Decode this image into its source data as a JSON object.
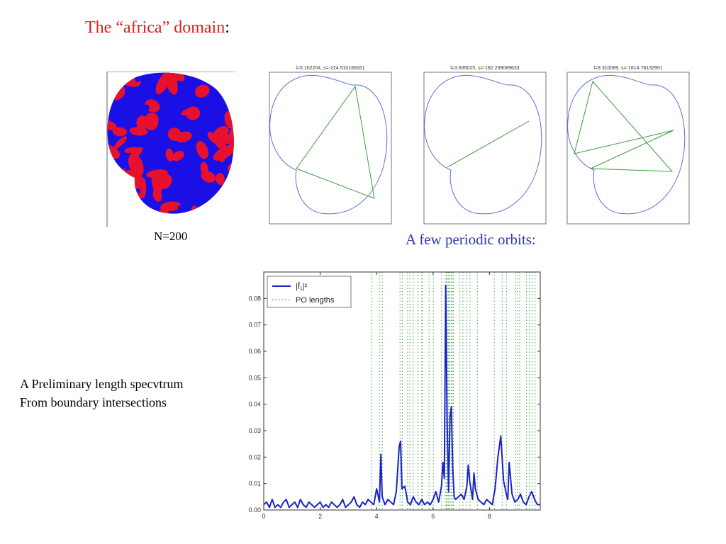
{
  "slide": {
    "title_main": "The “africa” domain",
    "title_colon": ":",
    "n_label": "N=200",
    "orbits_caption": "A few periodic orbits:",
    "spectrum_caption_line1": "A Preliminary length specvtrum",
    "spectrum_caption_line2": "From boundary intersections"
  },
  "colors": {
    "title": "#e31b1b",
    "orbits_caption": "#2e3aa8",
    "domain_red": "#e8112d",
    "domain_blue": "#1a10e6",
    "boundary": "#5e6ed6",
    "orbit_line": "#3f9a3f",
    "spectrum_line": "#1a22c8",
    "po_lines": "#3aa03a"
  },
  "orbit_panels": [
    {
      "title": "l=5.102204, s=-224.510169161"
    },
    {
      "title": "l=3.835025, s=-182.239089633"
    },
    {
      "title": "l=9.310089, s=-1614.78132951"
    }
  ],
  "chart_data": {
    "type": "line",
    "title": "",
    "xlabel": "",
    "ylabel": "",
    "xlim": [
      0,
      9.8
    ],
    "ylim": [
      0,
      0.09
    ],
    "x_ticks": [
      0,
      2,
      4,
      6,
      8
    ],
    "y_ticks": [
      0.0,
      0.01,
      0.02,
      0.03,
      0.04,
      0.05,
      0.06,
      0.07,
      0.08
    ],
    "x_tick_labels": [
      "0",
      "2",
      "4",
      "6",
      "8"
    ],
    "y_tick_labels": [
      "0.00",
      "0.01",
      "0.02",
      "0.03",
      "0.04",
      "0.05",
      "0.06",
      "0.07",
      "0.08"
    ],
    "legend_position": "top-left",
    "legend": [
      {
        "label": "|f̂₁|²",
        "style": "solid"
      },
      {
        "label": "PO lengths",
        "style": "dotted"
      }
    ],
    "series": [
      {
        "name": "|f̂₁|²",
        "x": [
          0.0,
          0.1,
          0.2,
          0.3,
          0.4,
          0.5,
          0.6,
          0.7,
          0.8,
          0.9,
          1.0,
          1.1,
          1.2,
          1.3,
          1.4,
          1.5,
          1.6,
          1.7,
          1.8,
          1.9,
          2.0,
          2.1,
          2.2,
          2.3,
          2.4,
          2.5,
          2.6,
          2.7,
          2.8,
          2.9,
          3.0,
          3.1,
          3.2,
          3.3,
          3.4,
          3.5,
          3.6,
          3.7,
          3.8,
          3.9,
          4.0,
          4.1,
          4.15,
          4.2,
          4.3,
          4.4,
          4.5,
          4.6,
          4.7,
          4.8,
          4.85,
          4.9,
          5.0,
          5.1,
          5.2,
          5.3,
          5.4,
          5.5,
          5.6,
          5.7,
          5.8,
          5.9,
          6.0,
          6.1,
          6.2,
          6.3,
          6.35,
          6.4,
          6.45,
          6.5,
          6.55,
          6.6,
          6.65,
          6.7,
          6.75,
          6.8,
          6.9,
          7.0,
          7.1,
          7.2,
          7.25,
          7.3,
          7.4,
          7.45,
          7.5,
          7.6,
          7.7,
          7.8,
          7.9,
          8.0,
          8.1,
          8.2,
          8.3,
          8.4,
          8.5,
          8.6,
          8.65,
          8.7,
          8.8,
          8.9,
          9.0,
          9.1,
          9.2,
          9.3,
          9.4,
          9.5,
          9.6,
          9.7,
          9.8
        ],
        "y": [
          0.002,
          0.003,
          0.001,
          0.004,
          0.001,
          0.002,
          0.001,
          0.003,
          0.004,
          0.001,
          0.002,
          0.003,
          0.001,
          0.004,
          0.002,
          0.001,
          0.003,
          0.002,
          0.001,
          0.002,
          0.003,
          0.001,
          0.002,
          0.001,
          0.003,
          0.002,
          0.001,
          0.002,
          0.004,
          0.001,
          0.002,
          0.003,
          0.005,
          0.002,
          0.001,
          0.003,
          0.002,
          0.004,
          0.003,
          0.002,
          0.008,
          0.003,
          0.021,
          0.005,
          0.002,
          0.004,
          0.003,
          0.002,
          0.007,
          0.024,
          0.026,
          0.008,
          0.009,
          0.003,
          0.002,
          0.005,
          0.003,
          0.002,
          0.004,
          0.002,
          0.003,
          0.002,
          0.004,
          0.007,
          0.003,
          0.009,
          0.018,
          0.012,
          0.085,
          0.033,
          0.007,
          0.035,
          0.039,
          0.016,
          0.005,
          0.004,
          0.005,
          0.006,
          0.004,
          0.009,
          0.017,
          0.011,
          0.004,
          0.014,
          0.008,
          0.004,
          0.003,
          0.002,
          0.004,
          0.003,
          0.002,
          0.008,
          0.02,
          0.028,
          0.011,
          0.006,
          0.004,
          0.018,
          0.006,
          0.003,
          0.004,
          0.006,
          0.003,
          0.002,
          0.005,
          0.007,
          0.004,
          0.002,
          0.002
        ]
      },
      {
        "name": "PO lengths",
        "x": [
          3.83,
          4.1,
          4.2,
          4.83,
          4.91,
          5.1,
          5.18,
          5.3,
          5.47,
          5.6,
          5.62,
          5.86,
          6.01,
          6.3,
          6.43,
          6.47,
          6.51,
          6.55,
          6.59,
          6.64,
          6.68,
          6.72,
          6.95,
          7.06,
          7.2,
          7.31,
          7.57,
          8.17,
          8.45,
          8.6,
          8.93,
          9.0,
          9.07,
          9.31,
          9.42,
          9.51,
          9.62
        ]
      }
    ]
  }
}
